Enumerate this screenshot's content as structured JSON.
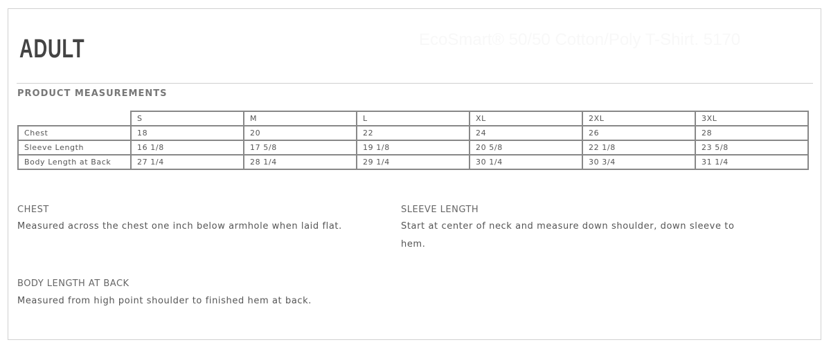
{
  "header": {
    "title": "ADULT",
    "product_name": "EcoSmart® 50/50 Cotton/Poly T-Shirt. 5170"
  },
  "section_title": "PRODUCT MEASUREMENTS",
  "table": {
    "sizes": [
      "S",
      "M",
      "L",
      "XL",
      "2XL",
      "3XL"
    ],
    "rows": [
      {
        "label": "Chest",
        "values": [
          "18",
          "20",
          "22",
          "24",
          "26",
          "28"
        ]
      },
      {
        "label": "Sleeve Length",
        "values": [
          "16 1/8",
          "17 5/8",
          "19 1/8",
          "20 5/8",
          "22 1/8",
          "23 5/8"
        ]
      },
      {
        "label": "Body Length at Back",
        "values": [
          "27 1/4",
          "28 1/4",
          "29 1/4",
          "30 1/4",
          "30 3/4",
          "31 1/4"
        ]
      }
    ]
  },
  "descriptions": {
    "chest": {
      "heading": "CHEST",
      "text": "Measured across the chest one inch below armhole when laid flat."
    },
    "sleeve": {
      "heading": "SLEEVE LENGTH",
      "text": "Start at center of neck and measure down shoulder, down sleeve to hem."
    },
    "body": {
      "heading": "BODY LENGTH AT BACK",
      "text": "Measured from high point shoulder to finished hem at back."
    }
  }
}
